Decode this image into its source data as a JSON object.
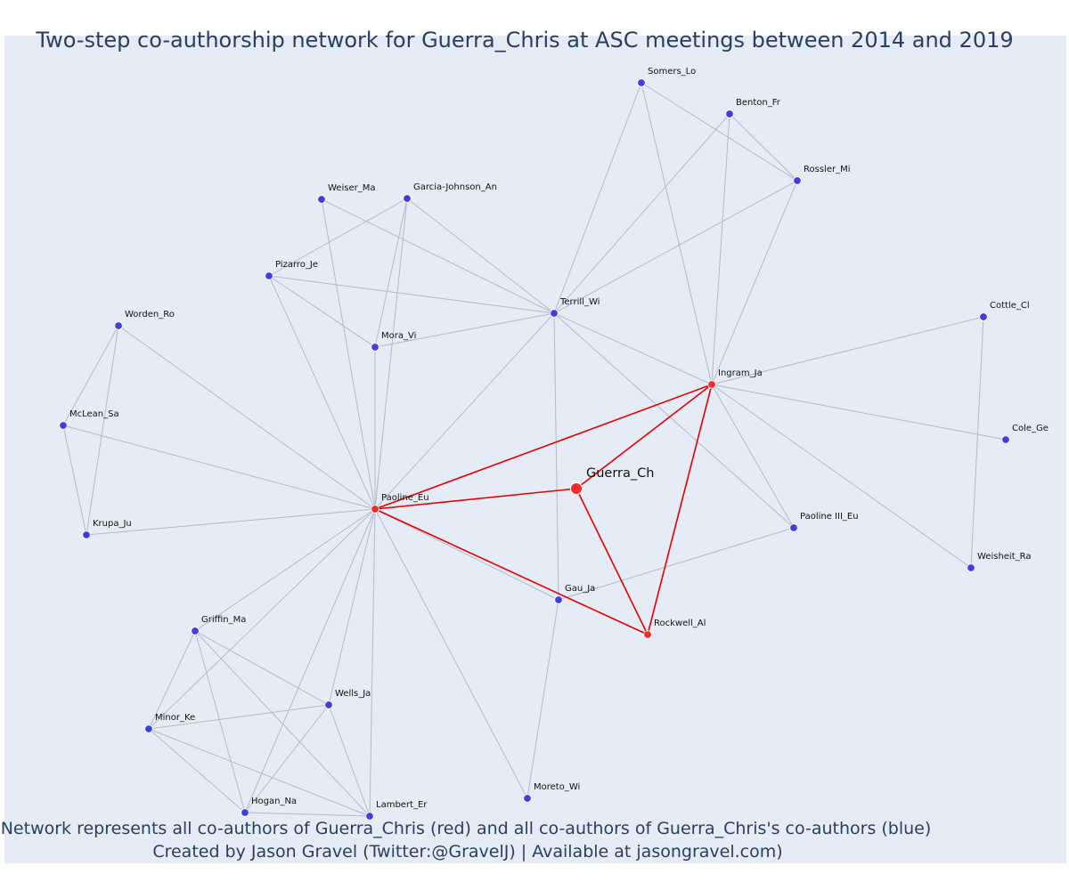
{
  "title": "Two-step co-authorship network for Guerra_Chris at ASC meetings between 2014 and 2019",
  "footer": {
    "line1": "Network represents all co-authors of Guerra_Chris (red) and all co-authors of Guerra_Chris's co-authors (blue)",
    "line2": "Created by Jason Gravel (Twitter:@GravelJ) | Available at jasongravel.com)"
  },
  "colors": {
    "background": "#e5ecf6",
    "coauthor": "#ef2b2b",
    "second_step": "#3f3fe0",
    "edge_gray": "#b6b9c9",
    "edge_red": "#e60000"
  },
  "network": {
    "center": "Guerra_Ch",
    "nodes": [
      {
        "id": "Somers_Lo",
        "group": "second"
      },
      {
        "id": "Benton_Fr",
        "group": "second"
      },
      {
        "id": "Rossler_Mi",
        "group": "second"
      },
      {
        "id": "Weiser_Ma",
        "group": "second"
      },
      {
        "id": "Garcia-Johnson_An",
        "group": "second"
      },
      {
        "id": "Pizarro_Je",
        "group": "second"
      },
      {
        "id": "Terrill_Wi",
        "group": "second"
      },
      {
        "id": "Cottle_Cl",
        "group": "second"
      },
      {
        "id": "Worden_Ro",
        "group": "second"
      },
      {
        "id": "Mora_Vi",
        "group": "second"
      },
      {
        "id": "Ingram_Ja",
        "group": "coauthor"
      },
      {
        "id": "McLean_Sa",
        "group": "second"
      },
      {
        "id": "Cole_Ge",
        "group": "second"
      },
      {
        "id": "Guerra_Ch",
        "group": "center"
      },
      {
        "id": "Paoline_Eu",
        "group": "coauthor"
      },
      {
        "id": "Krupa_Ju",
        "group": "second"
      },
      {
        "id": "Paoline III_Eu",
        "group": "second"
      },
      {
        "id": "Weisheit_Ra",
        "group": "second"
      },
      {
        "id": "Gau_Ja",
        "group": "second"
      },
      {
        "id": "Rockwell_Al",
        "group": "coauthor"
      },
      {
        "id": "Griffin_Ma",
        "group": "second"
      },
      {
        "id": "Wells_Ja",
        "group": "second"
      },
      {
        "id": "Minor_Ke",
        "group": "second"
      },
      {
        "id": "Moreto_Wi",
        "group": "second"
      },
      {
        "id": "Hogan_Na",
        "group": "second"
      },
      {
        "id": "Lambert_Er",
        "group": "second"
      }
    ],
    "edges": [
      [
        "Guerra_Ch",
        "Paoline_Eu",
        "red"
      ],
      [
        "Guerra_Ch",
        "Ingram_Ja",
        "red"
      ],
      [
        "Guerra_Ch",
        "Rockwell_Al",
        "red"
      ],
      [
        "Paoline_Eu",
        "Ingram_Ja",
        "red"
      ],
      [
        "Paoline_Eu",
        "Rockwell_Al",
        "red"
      ],
      [
        "Ingram_Ja",
        "Rockwell_Al",
        "red"
      ],
      [
        "Somers_Lo",
        "Terrill_Wi",
        "gray"
      ],
      [
        "Somers_Lo",
        "Ingram_Ja",
        "gray"
      ],
      [
        "Somers_Lo",
        "Rossler_Mi",
        "gray"
      ],
      [
        "Benton_Fr",
        "Terrill_Wi",
        "gray"
      ],
      [
        "Benton_Fr",
        "Ingram_Ja",
        "gray"
      ],
      [
        "Benton_Fr",
        "Rossler_Mi",
        "gray"
      ],
      [
        "Rossler_Mi",
        "Terrill_Wi",
        "gray"
      ],
      [
        "Rossler_Mi",
        "Ingram_Ja",
        "gray"
      ],
      [
        "Terrill_Wi",
        "Ingram_Ja",
        "gray"
      ],
      [
        "Terrill_Wi",
        "Paoline III_Eu",
        "gray"
      ],
      [
        "Terrill_Wi",
        "Gau_Ja",
        "gray"
      ],
      [
        "Terrill_Wi",
        "Paoline_Eu",
        "gray"
      ],
      [
        "Terrill_Wi",
        "Mora_Vi",
        "gray"
      ],
      [
        "Terrill_Wi",
        "Pizarro_Je",
        "gray"
      ],
      [
        "Terrill_Wi",
        "Weiser_Ma",
        "gray"
      ],
      [
        "Terrill_Wi",
        "Garcia-Johnson_An",
        "gray"
      ],
      [
        "Weiser_Ma",
        "Paoline_Eu",
        "gray"
      ],
      [
        "Garcia-Johnson_An",
        "Pizarro_Je",
        "gray"
      ],
      [
        "Garcia-Johnson_An",
        "Mora_Vi",
        "gray"
      ],
      [
        "Garcia-Johnson_An",
        "Paoline_Eu",
        "gray"
      ],
      [
        "Pizarro_Je",
        "Mora_Vi",
        "gray"
      ],
      [
        "Pizarro_Je",
        "Paoline_Eu",
        "gray"
      ],
      [
        "Mora_Vi",
        "Paoline_Eu",
        "gray"
      ],
      [
        "Worden_Ro",
        "McLean_Sa",
        "gray"
      ],
      [
        "Worden_Ro",
        "Krupa_Ju",
        "gray"
      ],
      [
        "Worden_Ro",
        "Paoline_Eu",
        "gray"
      ],
      [
        "McLean_Sa",
        "Krupa_Ju",
        "gray"
      ],
      [
        "McLean_Sa",
        "Paoline_Eu",
        "gray"
      ],
      [
        "Krupa_Ju",
        "Paoline_Eu",
        "gray"
      ],
      [
        "Ingram_Ja",
        "Cottle_Cl",
        "gray"
      ],
      [
        "Ingram_Ja",
        "Cole_Ge",
        "gray"
      ],
      [
        "Ingram_Ja",
        "Weisheit_Ra",
        "gray"
      ],
      [
        "Ingram_Ja",
        "Paoline III_Eu",
        "gray"
      ],
      [
        "Cottle_Cl",
        "Weisheit_Ra",
        "gray"
      ],
      [
        "Paoline III_Eu",
        "Gau_Ja",
        "gray"
      ],
      [
        "Paoline_Eu",
        "Gau_Ja",
        "gray"
      ],
      [
        "Gau_Ja",
        "Moreto_Wi",
        "gray"
      ],
      [
        "Paoline_Eu",
        "Moreto_Wi",
        "gray"
      ],
      [
        "Paoline_Eu",
        "Griffin_Ma",
        "gray"
      ],
      [
        "Paoline_Eu",
        "Minor_Ke",
        "gray"
      ],
      [
        "Paoline_Eu",
        "Wells_Ja",
        "gray"
      ],
      [
        "Paoline_Eu",
        "Hogan_Na",
        "gray"
      ],
      [
        "Paoline_Eu",
        "Lambert_Er",
        "gray"
      ],
      [
        "Griffin_Ma",
        "Minor_Ke",
        "gray"
      ],
      [
        "Griffin_Ma",
        "Wells_Ja",
        "gray"
      ],
      [
        "Griffin_Ma",
        "Hogan_Na",
        "gray"
      ],
      [
        "Griffin_Ma",
        "Lambert_Er",
        "gray"
      ],
      [
        "Minor_Ke",
        "Wells_Ja",
        "gray"
      ],
      [
        "Minor_Ke",
        "Hogan_Na",
        "gray"
      ],
      [
        "Minor_Ke",
        "Lambert_Er",
        "gray"
      ],
      [
        "Wells_Ja",
        "Hogan_Na",
        "gray"
      ],
      [
        "Wells_Ja",
        "Lambert_Er",
        "gray"
      ],
      [
        "Hogan_Na",
        "Lambert_Er",
        "gray"
      ]
    ]
  }
}
